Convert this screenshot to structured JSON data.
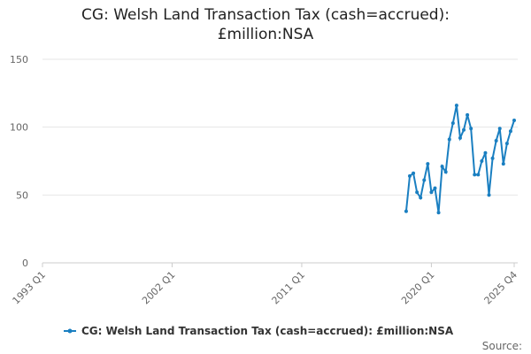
{
  "chart_data": {
    "type": "line",
    "title": "CG: Welsh Land Transaction Tax (cash=accrued): £million:NSA",
    "source_label": "Source:",
    "categories": [
      "1993 Q1",
      null,
      null,
      null,
      null,
      null,
      null,
      null,
      null,
      null,
      null,
      null,
      null,
      null,
      null,
      null,
      null,
      null,
      null,
      null,
      null,
      null,
      null,
      null,
      null,
      null,
      null,
      null,
      null,
      null,
      null,
      null,
      null,
      null,
      null,
      null,
      "2002 Q1",
      null,
      null,
      null,
      null,
      null,
      null,
      null,
      null,
      null,
      null,
      null,
      null,
      null,
      null,
      null,
      null,
      null,
      null,
      null,
      null,
      null,
      null,
      null,
      null,
      null,
      null,
      null,
      null,
      null,
      null,
      null,
      null,
      null,
      null,
      null,
      "2011 Q1",
      null,
      null,
      null,
      null,
      null,
      null,
      null,
      null,
      null,
      null,
      null,
      null,
      null,
      null,
      null,
      null,
      null,
      null,
      null,
      null,
      null,
      null,
      null,
      null,
      null,
      null,
      null,
      null,
      null,
      null,
      null,
      null,
      null,
      null,
      null,
      "2020 Q1",
      null,
      null,
      null,
      null,
      null,
      null,
      null,
      null,
      null,
      null,
      null,
      null,
      null,
      null,
      null,
      null,
      null,
      null,
      null,
      null,
      null,
      null,
      "2025 Q4"
    ],
    "series": [
      {
        "name": "CG: Welsh Land Transaction Tax (cash=accrued): £million:NSA",
        "color": "#1a7fc1",
        "values": [
          null,
          null,
          null,
          null,
          null,
          null,
          null,
          null,
          null,
          null,
          null,
          null,
          null,
          null,
          null,
          null,
          null,
          null,
          null,
          null,
          null,
          null,
          null,
          null,
          null,
          null,
          null,
          null,
          null,
          null,
          null,
          null,
          null,
          null,
          null,
          null,
          null,
          null,
          null,
          null,
          null,
          null,
          null,
          null,
          null,
          null,
          null,
          null,
          null,
          null,
          null,
          null,
          null,
          null,
          null,
          null,
          null,
          null,
          null,
          null,
          null,
          null,
          null,
          null,
          null,
          null,
          null,
          null,
          null,
          null,
          null,
          null,
          null,
          null,
          null,
          null,
          null,
          null,
          null,
          null,
          null,
          null,
          null,
          null,
          null,
          null,
          null,
          null,
          null,
          null,
          null,
          null,
          null,
          null,
          null,
          null,
          null,
          null,
          null,
          null,
          null,
          38,
          64,
          66,
          52,
          48,
          61,
          73,
          52,
          55,
          37,
          71,
          67,
          91,
          103,
          116,
          92,
          98,
          109,
          99,
          65,
          65,
          75,
          81,
          50,
          77,
          90,
          99,
          73,
          88,
          97,
          105
        ]
      }
    ],
    "ylim": [
      0,
      150
    ],
    "yticks": [
      0,
      50,
      100,
      150
    ],
    "grid": true
  }
}
